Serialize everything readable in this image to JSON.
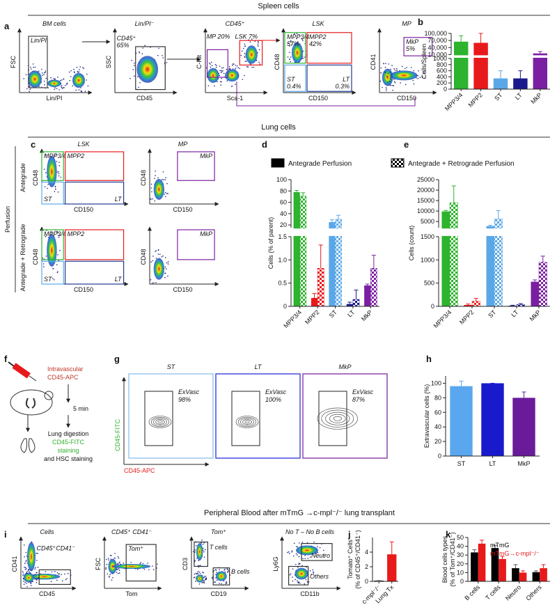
{
  "sections": {
    "spleen": "Spleen cells",
    "lung": "Lung cells",
    "blood": "Peripheral Blood after mTmG →c-mpl⁻/⁻ lung transplant"
  },
  "panel_letters": [
    "a",
    "b",
    "c",
    "d",
    "e",
    "f",
    "g",
    "h",
    "i",
    "j",
    "k"
  ],
  "panel_a": {
    "plots": [
      {
        "title": "BM cells",
        "x_label": "Lin/PI",
        "y_label": "FSC",
        "gates": [
          {
            "label": "Lin/PI"
          }
        ]
      },
      {
        "title": "Lin/PI⁻",
        "x_label": "CD45",
        "y_label": "SSC",
        "gates": [
          {
            "label": "CD45⁺",
            "value": "65%"
          }
        ]
      },
      {
        "title": "CD45⁺",
        "x_label": "Sca-1",
        "y_label": "C-Kit",
        "gates": [
          {
            "label": "MP 20%"
          },
          {
            "label": "LSK 7%"
          }
        ]
      },
      {
        "title": "LSK",
        "x_label": "CD150",
        "y_label": "CD48",
        "gates": [
          {
            "label": "MPP3/4",
            "value": "57%"
          },
          {
            "label": "MPP2",
            "value": "42%"
          },
          {
            "label": "ST",
            "value": "0.4%"
          },
          {
            "label": "LT",
            "value": "0.3%"
          }
        ]
      },
      {
        "title": "MP",
        "x_label": "CD150",
        "y_label": "CD41",
        "gates": [
          {
            "label": "MkP",
            "value": "5%"
          }
        ]
      }
    ]
  },
  "panel_c": {
    "perfusion": "Perfusion",
    "rows": [
      "Antegrade",
      "Antegrade + Retrograde"
    ],
    "plots": [
      {
        "title": "LSK",
        "x_label": "CD150",
        "y_label": "CD48",
        "gates": [
          {
            "label": "MPP3/4"
          },
          {
            "label": "MPP2"
          },
          {
            "label": "ST"
          },
          {
            "label": "LT"
          }
        ]
      },
      {
        "title": "MP",
        "x_label": "CD150",
        "y_label": "CD48",
        "gates": [
          {
            "label": "MkP"
          }
        ]
      },
      {
        "x_label": "CD150",
        "y_label": "CD48",
        "gates": [
          {
            "label": "MPP3/4"
          },
          {
            "label": "MPP2"
          },
          {
            "label": "ST"
          },
          {
            "label": "LT"
          }
        ]
      },
      {
        "x_label": "CD150",
        "y_label": "CD48",
        "gates": [
          {
            "label": "MkP"
          }
        ]
      }
    ]
  },
  "panel_f": {
    "injection": [
      "Intravascular",
      "CD45-APC"
    ],
    "wait": "5 min",
    "steps": [
      "Lung digestion",
      "CD45-FITC",
      "staining",
      "and HSC staining"
    ]
  },
  "panel_g": {
    "x_label": "CD45-APC",
    "y_label": "CD45-FITC",
    "plots": [
      {
        "title": "ST",
        "gates": [
          {
            "label": "ExVasc",
            "value": "98%"
          }
        ]
      },
      {
        "title": "LT",
        "gates": [
          {
            "label": "ExVasc",
            "value": "100%"
          }
        ]
      },
      {
        "title": "MkP",
        "gates": [
          {
            "label": "ExVasc",
            "value": "87%"
          }
        ]
      }
    ]
  },
  "panel_i": {
    "plots": [
      {
        "title": "Cells",
        "x_label": "CD45",
        "y_label": "CD41",
        "gates": [
          {
            "label": "CD45⁺CD41⁻"
          }
        ]
      },
      {
        "title": "CD45⁺ CD41⁻",
        "x_label": "Tom",
        "y_label": "FSC",
        "gates": [
          {
            "label": "Tom⁺"
          }
        ]
      },
      {
        "title": "Tom⁺",
        "x_label": "CD19",
        "y_label": "CD3",
        "gates": [
          {
            "label": "T cells"
          },
          {
            "label": "B cells"
          }
        ]
      },
      {
        "title": "No T – No B cells",
        "x_label": "CD11b",
        "y_label": "Ly6G",
        "gates": [
          {
            "label": "Neutro"
          },
          {
            "label": "Others"
          }
        ]
      }
    ]
  },
  "chart_data": [
    {
      "type": "bar",
      "y_label": "Cells/Spleen",
      "categories": [
        "MPP3/4",
        "MPP2",
        "ST",
        "LT",
        "MkP"
      ],
      "colors": [
        "#2db32d",
        "#e8191b",
        "#5aa7e8",
        "#1a1a8c",
        "#7b1fa2"
      ],
      "values": [
        65000,
        60000,
        350,
        350,
        15000
      ],
      "errors": [
        25000,
        40000,
        250,
        250,
        8000
      ],
      "ylim": [
        0,
        100000
      ],
      "ylim_break": [
        1000,
        10000
      ],
      "yticks": [
        0,
        200,
        400,
        600,
        800,
        1000,
        {
          "value": 10000,
          "label": "10,000"
        },
        {
          "value": 40000,
          "label": "40,000"
        },
        {
          "value": 70000,
          "label": "70,000"
        },
        {
          "value": 100000,
          "label": "100,000"
        }
      ]
    },
    {
      "type": "bar",
      "y_label": "Cells (% of parent)",
      "categories": [
        "MPP3/4",
        "MPP2",
        "ST",
        "LT",
        "MkP"
      ],
      "colors": [
        "#2db32d",
        "#e8191b",
        "#5aa7e8",
        "#1a1a8c",
        "#7b1fa2"
      ],
      "series": [
        {
          "name": "Antegrade Perfusion",
          "color": "#000000",
          "pattern": "solid",
          "values": [
            78,
            0.18,
            25,
            0.05,
            0.45
          ],
          "errors": [
            3,
            0.1,
            4,
            0.04,
            0.03
          ]
        },
        {
          "name": "Antegrade + Retrograde  Perfusion",
          "color": "#000000",
          "pattern": "checkered",
          "values": [
            71,
            0.82,
            30,
            0.15,
            0.82
          ],
          "errors": [
            6,
            0.5,
            7,
            0.2,
            0.28
          ]
        }
      ],
      "ylim": [
        0,
        100
      ],
      "ylim_break": [
        1.5,
        15
      ],
      "yticks": [
        0,
        0.5,
        {
          "value": 1,
          "label": "1.0"
        },
        1.5,
        20,
        40,
        60,
        80,
        100
      ]
    },
    {
      "type": "bar",
      "y_label": "Cells (count)",
      "categories": [
        "MPP3/4",
        "MPP2",
        "ST",
        "LT",
        "MkP"
      ],
      "colors": [
        "#2db32d",
        "#e8191b",
        "#5aa7e8",
        "#1a1a8c",
        "#7b1fa2"
      ],
      "series": [
        {
          "pattern": "solid",
          "values": [
            9800,
            30,
            2800,
            15,
            530
          ],
          "errors": [
            500,
            20,
            400,
            10,
            40
          ]
        },
        {
          "pattern": "checkered",
          "values": [
            14000,
            110,
            6200,
            40,
            950
          ],
          "errors": [
            8000,
            60,
            4000,
            20,
            130
          ]
        }
      ],
      "ylim": [
        0,
        25000
      ],
      "ylim_break": [
        1500,
        2000
      ],
      "yticks": [
        0,
        500,
        1000,
        1500,
        5000,
        10000,
        15000,
        20000,
        25000
      ]
    },
    {
      "type": "bar",
      "y_label": "Extravascular cells (%)",
      "categories": [
        "ST",
        "LT",
        "MkP"
      ],
      "colors": [
        "#5aa7f0",
        "#1a1acd",
        "#6a1b9a"
      ],
      "values": [
        96,
        100,
        80
      ],
      "errors": [
        7,
        0,
        8
      ],
      "ylim": [
        0,
        110
      ],
      "yticks": [
        0,
        20,
        40,
        60,
        80,
        100
      ]
    },
    {
      "type": "bar",
      "y_label": [
        "Tomato⁺ Cells",
        "(% of CD45⁺/CD41⁻)"
      ],
      "categories": [
        "c-mpl⁻/⁻",
        "Lung Tx"
      ],
      "colors": [
        "#000000",
        "#e8191b"
      ],
      "values": [
        0.1,
        3.7
      ],
      "errors": [
        0,
        1.7
      ],
      "ylim": [
        0,
        6
      ],
      "yticks": [
        0,
        2,
        4
      ]
    },
    {
      "type": "bar",
      "y_label": [
        "Blood cells types",
        "(% of Tom⁺/CD41⁻)"
      ],
      "categories": [
        "B cells",
        "T cells",
        "Neutro",
        "Others"
      ],
      "series": [
        {
          "name": "mTmG",
          "color": "#000000",
          "values": [
            33,
            38,
            15,
            10.5
          ],
          "errors": [
            3,
            3,
            4,
            1.5
          ]
        },
        {
          "name": "mTmG→c-mpl⁻/⁻",
          "color": "#e8191b",
          "values": [
            43,
            25.5,
            10,
            15
          ],
          "errors": [
            4,
            3,
            2,
            4
          ]
        }
      ],
      "ylim": [
        0,
        50
      ],
      "yticks": [
        0,
        10,
        20,
        30,
        40,
        50
      ]
    }
  ]
}
